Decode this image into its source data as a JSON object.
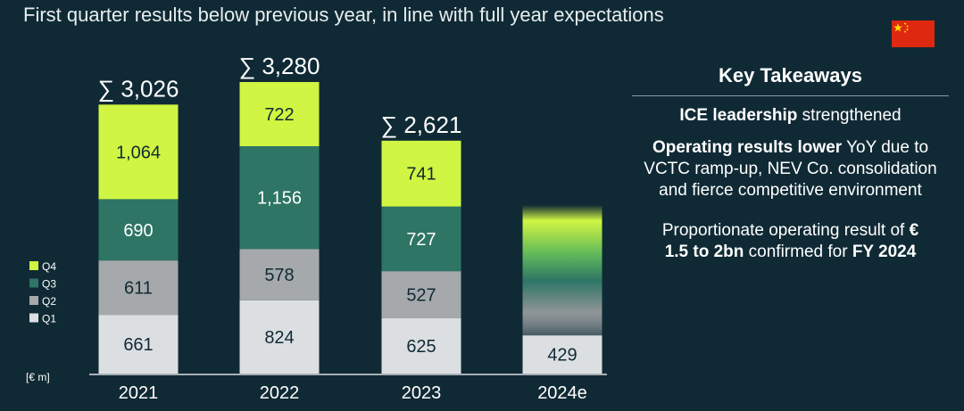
{
  "header": {
    "subtitle": "First quarter results below previous year, in line with full year expectations"
  },
  "flag": {
    "name": "china-flag",
    "colors": {
      "red": "#de2910",
      "yellow": "#ffde00"
    }
  },
  "chart_data": {
    "type": "bar",
    "stacked": true,
    "unit_label": "[€ m]",
    "categories": [
      "2021",
      "2022",
      "2023",
      "2024e"
    ],
    "series": [
      {
        "name": "Q1",
        "values": [
          661,
          824,
          625,
          429
        ],
        "labels": [
          "661",
          "824",
          "625",
          "429"
        ],
        "color": "#dcdfe2",
        "label_color": "#102a35"
      },
      {
        "name": "Q2",
        "values": [
          611,
          578,
          527,
          null
        ],
        "labels": [
          "611",
          "578",
          "527",
          ""
        ],
        "color": "#a5a9ab",
        "label_color": "#102a35"
      },
      {
        "name": "Q3",
        "values": [
          690,
          1156,
          727,
          null
        ],
        "labels": [
          "690",
          "1,156",
          "727",
          ""
        ],
        "color": "#2e7565",
        "label_color": "#ffffff"
      },
      {
        "name": "Q4",
        "values": [
          1064,
          722,
          741,
          null
        ],
        "labels": [
          "1,064",
          "722",
          "741",
          ""
        ],
        "color": "#d0f542",
        "label_color": "#102a35"
      }
    ],
    "totals": [
      "∑ 3,026",
      "∑ 3,280",
      "∑ 2,621",
      ""
    ],
    "legend": [
      "Q4",
      "Q3",
      "Q2",
      "Q1"
    ],
    "legend_position": "left",
    "ylim": [
      0,
      3280
    ],
    "estimate_category": "2024e",
    "estimate_fade_colors": [
      "#d0f542",
      "#2e7565",
      "#a5a9ab"
    ]
  },
  "takeaways": {
    "title": "Key Takeaways",
    "p1_bold": "ICE leadership",
    "p1_rest": " strengthened",
    "p2_bold": "Operating results lower",
    "p2_rest": " YoY due to VCTC ramp-up, NEV Co. consolidation and fierce competitive environment",
    "p3_a": "Proportionate operating result of ",
    "p3_bold1": "€ 1.5 to 2bn",
    "p3_b": " confirmed for ",
    "p3_bold2": "FY 2024"
  }
}
